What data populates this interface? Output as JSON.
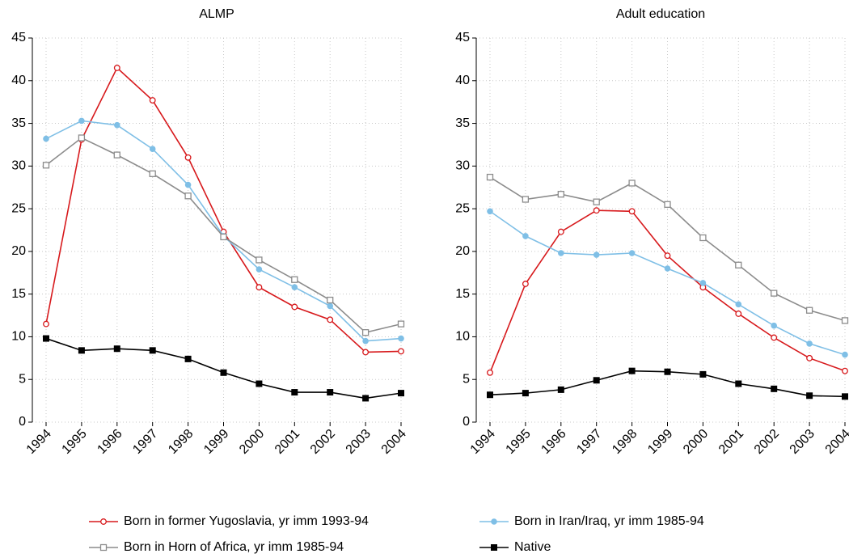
{
  "chart_data": [
    {
      "type": "line",
      "title": "ALMP",
      "categories": [
        "1994",
        "1995",
        "1996",
        "1997",
        "1998",
        "1999",
        "2000",
        "2001",
        "2002",
        "2003",
        "2004"
      ],
      "ylim": [
        0,
        45
      ],
      "yticks": [
        0,
        5,
        10,
        15,
        20,
        25,
        30,
        35,
        40,
        45
      ],
      "grid": true,
      "series": [
        {
          "name": "Born in former Yugoslavia, yr imm 1993-94",
          "color": "#d7191c",
          "marker": "hollow-circle",
          "values": [
            11.5,
            33.1,
            41.5,
            37.7,
            31.0,
            22.3,
            15.8,
            13.5,
            12.0,
            8.2,
            8.3
          ]
        },
        {
          "name": "Born in Iran/Iraq, yr imm 1985-94",
          "color": "#7fbfe6",
          "marker": "circle",
          "values": [
            33.2,
            35.3,
            34.8,
            32.0,
            27.8,
            21.8,
            17.9,
            15.8,
            13.6,
            9.5,
            9.8
          ]
        },
        {
          "name": "Born in Horn of Africa, yr imm 1985-94",
          "color": "#8c8c8c",
          "marker": "hollow-square",
          "values": [
            30.1,
            33.3,
            31.3,
            29.1,
            26.5,
            21.7,
            19.0,
            16.7,
            14.3,
            10.5,
            11.5
          ]
        },
        {
          "name": "Native",
          "color": "#000000",
          "marker": "square",
          "values": [
            9.8,
            8.4,
            8.6,
            8.4,
            7.4,
            5.8,
            4.5,
            3.5,
            3.5,
            2.8,
            3.4
          ]
        }
      ]
    },
    {
      "type": "line",
      "title": "Adult education",
      "categories": [
        "1994",
        "1995",
        "1996",
        "1997",
        "1998",
        "1999",
        "2000",
        "2001",
        "2002",
        "2003",
        "2004"
      ],
      "ylim": [
        0,
        45
      ],
      "yticks": [
        0,
        5,
        10,
        15,
        20,
        25,
        30,
        35,
        40,
        45
      ],
      "grid": true,
      "series": [
        {
          "color": "#d7191c",
          "marker": "hollow-circle",
          "values": [
            5.8,
            16.2,
            22.3,
            24.8,
            24.7,
            19.5,
            15.8,
            12.7,
            9.9,
            7.5,
            6.0
          ]
        },
        {
          "color": "#7fbfe6",
          "marker": "circle",
          "values": [
            24.7,
            21.8,
            19.8,
            19.6,
            19.8,
            18.0,
            16.3,
            13.8,
            11.3,
            9.2,
            7.9
          ]
        },
        {
          "color": "#8c8c8c",
          "marker": "hollow-square",
          "values": [
            28.7,
            26.1,
            26.7,
            25.8,
            28.0,
            25.5,
            21.6,
            18.4,
            15.1,
            13.1,
            11.9
          ]
        },
        {
          "color": "#000000",
          "marker": "square",
          "values": [
            3.2,
            3.4,
            3.8,
            4.9,
            6.0,
            5.9,
            5.6,
            4.5,
            3.9,
            3.1,
            3.0
          ]
        }
      ]
    }
  ]
}
